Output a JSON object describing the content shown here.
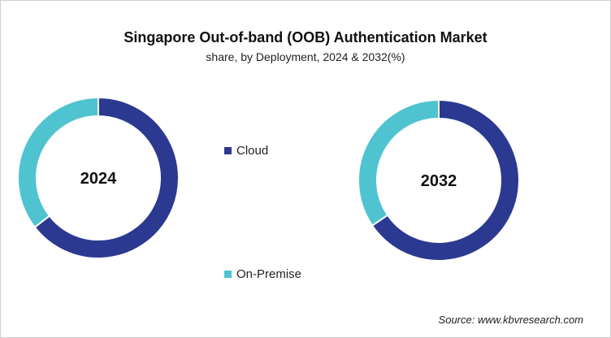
{
  "chart_data": {
    "type": "pie",
    "variant": "donut",
    "title": "Singapore Out-of-band (OOB) Authentication Market",
    "subtitle": "share, by Deployment, 2024 & 2032(%)",
    "legend": {
      "placement": "center",
      "entries": [
        "Cloud",
        "On-Premise"
      ]
    },
    "colors": {
      "Cloud": "#2b3990",
      "On-Premise": "#4fc3d0"
    },
    "charts": [
      {
        "label": "2024",
        "categories": [
          "Cloud",
          "On-Premise"
        ],
        "values": [
          64.5,
          35.5
        ]
      },
      {
        "label": "2032",
        "categories": [
          "Cloud",
          "On-Premise"
        ],
        "values": [
          65.5,
          34.5
        ]
      }
    ]
  },
  "source": "Source: www.kbvresearch.com"
}
